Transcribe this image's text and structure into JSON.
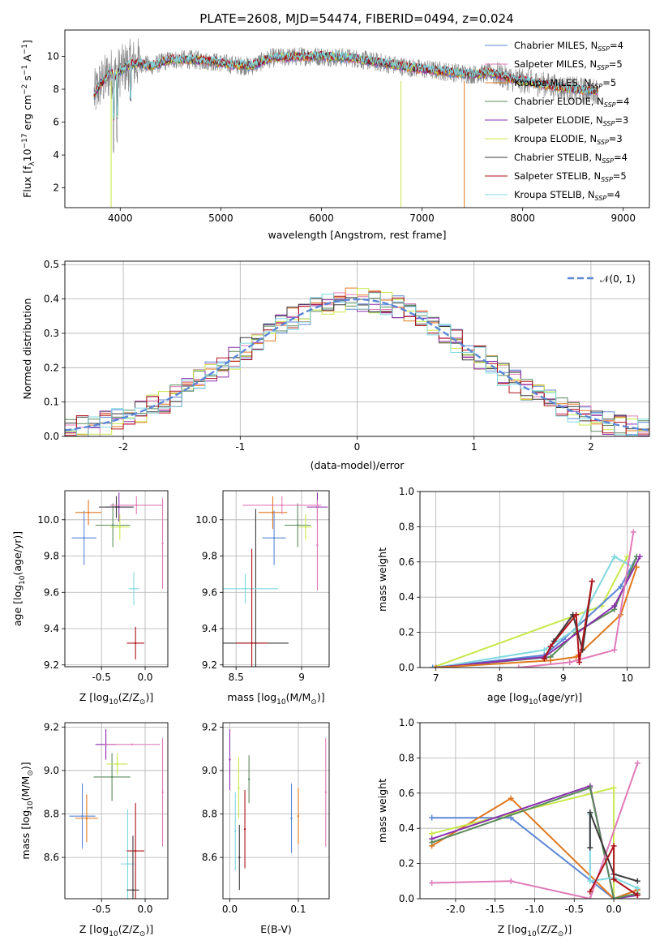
{
  "figure": {
    "title": "PLATE=2608, MJD=54474, FIBERID=0494, z=0.024"
  },
  "colors": {
    "chabrier_miles": "#5b87d6",
    "salpeter_miles": "#e07ab8",
    "kroupa_miles": "#e0781f",
    "chabrier_elodie": "#5a8a5a",
    "salpeter_elodie": "#8b2fae",
    "kroupa_elodie": "#c8e84a",
    "chabrier_stelib": "#3a3a3a",
    "salpeter_stelib": "#b0121a",
    "kroupa_stelib": "#7fd8e0",
    "data": "#808080",
    "normal": "#5b87d6"
  },
  "chart_data": [
    {
      "id": "spectrum",
      "type": "line",
      "xlabel": "wavelength [Angstrom, rest frame]",
      "ylabel_parts": [
        "Flux [f",
        "λ",
        "10",
        "−17",
        " erg cm",
        "−2",
        " s",
        "−1",
        " A",
        "−1",
        "]"
      ],
      "xlim": [
        3450,
        9260
      ],
      "ylim": [
        0.8,
        11.6
      ],
      "xticks": [
        4000,
        5000,
        6000,
        7000,
        8000,
        9000
      ],
      "yticks": [
        2,
        4,
        6,
        8,
        10
      ],
      "continuum": [
        [
          3740,
          7.6
        ],
        [
          3800,
          8.3
        ],
        [
          3850,
          8.6
        ],
        [
          3900,
          9.0
        ],
        [
          3950,
          8.8
        ],
        [
          4000,
          9.1
        ],
        [
          4100,
          9.5
        ],
        [
          4200,
          9.6
        ],
        [
          4300,
          9.4
        ],
        [
          4400,
          9.6
        ],
        [
          4500,
          9.8
        ],
        [
          4700,
          9.8
        ],
        [
          4900,
          9.7
        ],
        [
          5100,
          9.5
        ],
        [
          5300,
          9.4
        ],
        [
          5500,
          9.9
        ],
        [
          5800,
          10.0
        ],
        [
          6000,
          10.0
        ],
        [
          6300,
          9.9
        ],
        [
          6600,
          9.6
        ],
        [
          6900,
          9.3
        ],
        [
          7200,
          9.1
        ],
        [
          7500,
          8.9
        ],
        [
          7700,
          9.0
        ],
        [
          7900,
          8.6
        ],
        [
          8100,
          8.4
        ],
        [
          8300,
          8.2
        ],
        [
          8500,
          8.0
        ],
        [
          8700,
          7.9
        ]
      ],
      "legend": [
        {
          "key": "chabrier_miles",
          "label": "Chabrier MILES, N",
          "sub": "SSP",
          "suffix": "=4"
        },
        {
          "key": "salpeter_miles",
          "label": "Salpeter MILES, N",
          "sub": "SSP",
          "suffix": "=5"
        },
        {
          "key": "kroupa_miles",
          "label": "Kroupa MILES, N",
          "sub": "SSP",
          "suffix": "=5"
        },
        {
          "key": "chabrier_elodie",
          "label": "Chabrier ELODIE, N",
          "sub": "SSP",
          "suffix": "=4"
        },
        {
          "key": "salpeter_elodie",
          "label": "Salpeter ELODIE, N",
          "sub": "SSP",
          "suffix": "=3"
        },
        {
          "key": "kroupa_elodie",
          "label": "Kroupa ELODIE, N",
          "sub": "SSP",
          "suffix": "=3"
        },
        {
          "key": "chabrier_stelib",
          "label": "Chabrier STELIB, N",
          "sub": "SSP",
          "suffix": "=4"
        },
        {
          "key": "salpeter_stelib",
          "label": "Salpeter STELIB, N",
          "sub": "SSP",
          "suffix": "=5"
        },
        {
          "key": "kroupa_stelib",
          "label": "Kroupa STELIB, N",
          "sub": "SSP",
          "suffix": "=4"
        }
      ]
    },
    {
      "id": "residuals",
      "type": "histogram",
      "xlabel": "(data-model)/error",
      "ylabel": "Normed distribution",
      "xlim": [
        -2.5,
        2.5
      ],
      "ylim": [
        0,
        0.51
      ],
      "xticks": [
        -2,
        -1,
        0,
        1,
        2
      ],
      "yticks": [
        0.0,
        0.1,
        0.2,
        0.3,
        0.4,
        0.5
      ],
      "bin_width": 0.1,
      "legend_label": "𝒩(0, 1)"
    },
    {
      "id": "age_vs_Z",
      "type": "scatter",
      "xlabel_parts": [
        "Z [log",
        "10",
        "(Z/Z",
        "⊙",
        ")]"
      ],
      "ylabel_parts": [
        "age  [log",
        "10",
        "(age/yr)]"
      ],
      "xlim": [
        -0.92,
        0.26
      ],
      "ylim": [
        9.19,
        10.16
      ],
      "xticks": [
        -0.5,
        0.0
      ],
      "yticks": [
        9.2,
        9.4,
        9.6,
        9.8,
        10.0
      ],
      "points": [
        {
          "key": "chabrier_miles",
          "x": -0.7,
          "y": 9.9,
          "xe": 0.14,
          "ye": 0.15
        },
        {
          "key": "kroupa_miles",
          "x": -0.65,
          "y": 10.04,
          "xe": 0.15,
          "ye": 0.07
        },
        {
          "key": "chabrier_elodie",
          "x": -0.37,
          "y": 9.97,
          "xe": 0.2,
          "ye": 0.12
        },
        {
          "key": "salpeter_elodie",
          "x": -0.3,
          "y": 10.07,
          "xe": 0.16,
          "ye": 0.08
        },
        {
          "key": "kroupa_elodie",
          "x": -0.29,
          "y": 9.96,
          "xe": 0.11,
          "ye": 0.07
        },
        {
          "key": "chabrier_stelib",
          "x": -0.33,
          "y": 10.07,
          "xe": 0.2,
          "ye": 0.06
        },
        {
          "key": "kroupa_stelib",
          "x": -0.13,
          "y": 9.62,
          "xe": 0.06,
          "ye": 0.09
        },
        {
          "key": "salpeter_stelib",
          "x": -0.11,
          "y": 9.32,
          "xe": 0.1,
          "ye": 0.09
        },
        {
          "key": "salpeter_miles",
          "x": -0.1,
          "y": 10.08,
          "xe": 0.3,
          "ye": 0.05
        },
        {
          "key": "salpeter_miles",
          "x": 0.2,
          "y": 9.87,
          "xe": 0.0,
          "ye": 0.25
        }
      ]
    },
    {
      "id": "age_vs_mass",
      "type": "scatter",
      "xlabel_parts": [
        "mass [log",
        "10",
        "(M/M",
        "⊙",
        ")]"
      ],
      "xlim": [
        8.4,
        9.21
      ],
      "ylim": [
        9.19,
        10.16
      ],
      "xticks": [
        8.5,
        9.0
      ],
      "yticks": [
        9.2,
        9.4,
        9.6,
        9.8,
        10.0
      ],
      "points": [
        {
          "key": "chabrier_miles",
          "x": 8.79,
          "y": 9.9,
          "xe": 0.09,
          "ye": 0.15
        },
        {
          "key": "kroupa_miles",
          "x": 8.78,
          "y": 10.04,
          "xe": 0.11,
          "ye": 0.09
        },
        {
          "key": "chabrier_elodie",
          "x": 8.97,
          "y": 9.97,
          "xe": 0.1,
          "ye": 0.12
        },
        {
          "key": "salpeter_elodie",
          "x": 9.12,
          "y": 10.07,
          "xe": 0.08,
          "ye": 0.08
        },
        {
          "key": "kroupa_elodie",
          "x": 9.03,
          "y": 9.96,
          "xe": 0.05,
          "ye": 0.07
        },
        {
          "key": "chabrier_stelib",
          "x": 8.65,
          "y": 9.32,
          "xe": 0.25,
          "ye": 0.74
        },
        {
          "key": "kroupa_stelib",
          "x": 8.57,
          "y": 9.62,
          "xe": 0.25,
          "ye": 0.08
        },
        {
          "key": "salpeter_stelib",
          "x": 8.62,
          "y": 9.32,
          "xe": 0.12,
          "ye": 0.52
        },
        {
          "key": "salpeter_miles",
          "x": 8.85,
          "y": 10.08,
          "xe": 0.3,
          "ye": 0.05
        },
        {
          "key": "salpeter_miles",
          "x": 9.12,
          "y": 9.86,
          "xe": 0.0,
          "ye": 0.25
        }
      ]
    },
    {
      "id": "mw_vs_age",
      "type": "line",
      "xlabel_parts": [
        "age  [log",
        "10",
        "(age/yr)]"
      ],
      "ylabel": "mass weight",
      "xlim": [
        6.75,
        10.35
      ],
      "ylim": [
        0,
        1.0
      ],
      "xticks": [
        7,
        8,
        9,
        10
      ],
      "yticks": [
        0.0,
        0.2,
        0.4,
        0.6,
        0.8,
        1.0
      ],
      "series": [
        {
          "key": "kroupa_elodie",
          "x": [
            6.95,
            9.6,
            10.0
          ],
          "y": [
            0.0,
            0.35,
            0.63
          ]
        },
        {
          "key": "chabrier_miles",
          "x": [
            6.95,
            8.7,
            9.0,
            9.9,
            10.15
          ],
          "y": [
            0.0,
            0.07,
            0.16,
            0.46,
            0.63
          ]
        },
        {
          "key": "kroupa_stelib",
          "x": [
            7.0,
            8.7,
            9.2,
            9.8,
            10.1
          ],
          "y": [
            0.0,
            0.1,
            0.22,
            0.63,
            0.57
          ]
        },
        {
          "key": "chabrier_elodie",
          "x": [
            7.0,
            8.8,
            9.2,
            9.8,
            10.15
          ],
          "y": [
            0.0,
            0.06,
            0.2,
            0.33,
            0.63
          ]
        },
        {
          "key": "salpeter_elodie",
          "x": [
            7.0,
            8.7,
            9.8,
            10.2
          ],
          "y": [
            0.0,
            0.06,
            0.35,
            0.63
          ]
        },
        {
          "key": "kroupa_miles",
          "x": [
            7.0,
            8.8,
            9.2,
            9.9,
            10.15
          ],
          "y": [
            0.0,
            0.04,
            0.06,
            0.3,
            0.57
          ]
        },
        {
          "key": "salpeter_miles",
          "x": [
            8.3,
            9.1,
            9.8,
            10.1
          ],
          "y": [
            0.0,
            0.03,
            0.1,
            0.77
          ]
        },
        {
          "key": "chabrier_stelib",
          "x": [
            8.7,
            8.85,
            9.15,
            9.3,
            9.45
          ],
          "y": [
            0.05,
            0.15,
            0.3,
            0.1,
            0.49
          ]
        },
        {
          "key": "salpeter_stelib",
          "x": [
            8.7,
            8.8,
            9.2,
            9.25,
            9.45
          ],
          "y": [
            0.05,
            0.12,
            0.3,
            0.03,
            0.49
          ]
        }
      ]
    },
    {
      "id": "mass_vs_Z",
      "type": "scatter",
      "xlabel_parts": [
        "Z [log",
        "10",
        "(Z/Z",
        "⊙",
        ")]"
      ],
      "ylabel_parts": [
        "mass [log",
        "10",
        "(M/M",
        "⊙",
        ")]"
      ],
      "xlim": [
        -0.92,
        0.26
      ],
      "ylim": [
        8.41,
        9.22
      ],
      "xticks": [
        -0.5,
        0.0
      ],
      "yticks": [
        8.6,
        8.8,
        9.0,
        9.2
      ],
      "points": [
        {
          "key": "chabrier_miles",
          "x": -0.72,
          "y": 8.79,
          "xe": 0.15,
          "ye": 0.15
        },
        {
          "key": "kroupa_miles",
          "x": -0.67,
          "y": 8.78,
          "xe": 0.13,
          "ye": 0.11
        },
        {
          "key": "chabrier_elodie",
          "x": -0.38,
          "y": 8.97,
          "xe": 0.21,
          "ye": 0.11
        },
        {
          "key": "salpeter_elodie",
          "x": -0.45,
          "y": 9.12,
          "xe": 0.12,
          "ye": 0.07
        },
        {
          "key": "kroupa_elodie",
          "x": -0.32,
          "y": 9.03,
          "xe": 0.12,
          "ye": 0.05
        },
        {
          "key": "salpeter_miles",
          "x": -0.15,
          "y": 9.12,
          "xe": 0.32,
          "ye": 0.0
        },
        {
          "key": "salpeter_miles",
          "x": 0.2,
          "y": 8.9,
          "xe": 0.0,
          "ye": 0.25
        },
        {
          "key": "kroupa_stelib",
          "x": -0.2,
          "y": 8.57,
          "xe": 0.08,
          "ye": 0.25
        },
        {
          "key": "salpeter_stelib",
          "x": -0.11,
          "y": 8.63,
          "xe": 0.1,
          "ye": 0.22
        },
        {
          "key": "chabrier_stelib",
          "x": -0.14,
          "y": 8.45,
          "xe": 0.07,
          "ye": 0.25
        }
      ]
    },
    {
      "id": "mass_vs_ebv",
      "type": "scatter",
      "xlabel": "E(B-V)",
      "xlim": [
        -0.01,
        0.145
      ],
      "ylim": [
        8.41,
        9.22
      ],
      "xticks": [
        0.0,
        0.1
      ],
      "yticks": [
        8.6,
        8.8,
        9.0,
        9.2
      ],
      "points": [
        {
          "key": "salpeter_elodie",
          "x": 0.0,
          "y": 9.05,
          "xe": 0,
          "ye": 0.14
        },
        {
          "key": "kroupa_stelib",
          "x": 0.008,
          "y": 8.72,
          "xe": 0,
          "ye": 0.18
        },
        {
          "key": "kroupa_elodie",
          "x": 0.013,
          "y": 8.92,
          "xe": 0,
          "ye": 0.14
        },
        {
          "key": "chabrier_stelib",
          "x": 0.014,
          "y": 8.6,
          "xe": 0,
          "ye": 0.15
        },
        {
          "key": "salpeter_stelib",
          "x": 0.022,
          "y": 8.73,
          "xe": 0,
          "ye": 0.18
        },
        {
          "key": "chabrier_elodie",
          "x": 0.028,
          "y": 8.96,
          "xe": 0,
          "ye": 0.11
        },
        {
          "key": "chabrier_miles",
          "x": 0.09,
          "y": 8.78,
          "xe": 0,
          "ye": 0.16
        },
        {
          "key": "kroupa_miles",
          "x": 0.1,
          "y": 8.79,
          "xe": 0,
          "ye": 0.13
        },
        {
          "key": "salpeter_miles",
          "x": 0.14,
          "y": 8.9,
          "xe": 0,
          "ye": 0.25
        }
      ]
    },
    {
      "id": "mw_vs_Z",
      "type": "line",
      "xlabel_parts": [
        "Z [log",
        "10",
        "(Z/Z",
        "⊙",
        ")]"
      ],
      "ylabel": "mass weight",
      "xlim": [
        -2.45,
        0.45
      ],
      "ylim": [
        0,
        1.0
      ],
      "xticks": [
        -2.0,
        -1.5,
        -1.0,
        -0.5,
        0.0
      ],
      "yticks": [
        0.0,
        0.2,
        0.4,
        0.6,
        0.8,
        1.0
      ],
      "series": [
        {
          "key": "chabrier_miles",
          "x": [
            -2.3,
            -1.3,
            0.0,
            0.3
          ],
          "y": [
            0.46,
            0.46,
            0.0,
            0.05
          ]
        },
        {
          "key": "kroupa_miles",
          "x": [
            -2.3,
            -1.3,
            0.0,
            0.3
          ],
          "y": [
            0.3,
            0.57,
            0.0,
            0.05
          ]
        },
        {
          "key": "kroupa_elodie",
          "x": [
            -2.3,
            0.0,
            0.0
          ],
          "y": [
            0.37,
            0.63,
            0.0
          ]
        },
        {
          "key": "salpeter_elodie",
          "x": [
            -2.3,
            -0.3,
            0.0,
            0.3
          ],
          "y": [
            0.34,
            0.64,
            0.0,
            0.02
          ]
        },
        {
          "key": "chabrier_elodie",
          "x": [
            -2.3,
            -0.3,
            0.0,
            0.3
          ],
          "y": [
            0.32,
            0.63,
            0.0,
            0.03
          ]
        },
        {
          "key": "salpeter_miles",
          "x": [
            -2.3,
            -1.3,
            -0.3,
            0.3
          ],
          "y": [
            0.09,
            0.1,
            0.0,
            0.77
          ]
        },
        {
          "key": "kroupa_stelib",
          "x": [
            -0.3,
            -0.3,
            0.0,
            0.3
          ],
          "y": [
            0.48,
            0.1,
            0.12,
            0.06
          ]
        },
        {
          "key": "chabrier_stelib",
          "x": [
            -0.3,
            -0.3,
            0.0,
            0.3
          ],
          "y": [
            0.29,
            0.49,
            0.14,
            0.1
          ]
        },
        {
          "key": "salpeter_stelib",
          "x": [
            -0.3,
            0.0,
            0.0,
            0.3
          ],
          "y": [
            0.04,
            0.3,
            0.11,
            0.02
          ]
        }
      ]
    }
  ]
}
